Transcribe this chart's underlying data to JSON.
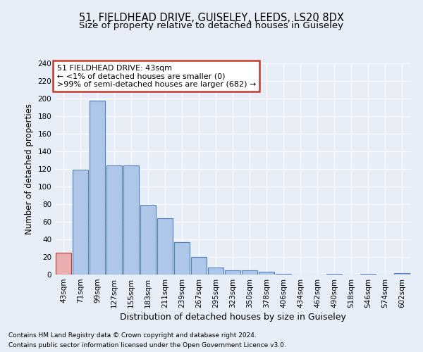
{
  "title1": "51, FIELDHEAD DRIVE, GUISELEY, LEEDS, LS20 8DX",
  "title2": "Size of property relative to detached houses in Guiseley",
  "xlabel": "Distribution of detached houses by size in Guiseley",
  "ylabel": "Number of detached properties",
  "categories": [
    "43sqm",
    "71sqm",
    "99sqm",
    "127sqm",
    "155sqm",
    "183sqm",
    "211sqm",
    "239sqm",
    "267sqm",
    "295sqm",
    "323sqm",
    "350sqm",
    "378sqm",
    "406sqm",
    "434sqm",
    "462sqm",
    "490sqm",
    "518sqm",
    "546sqm",
    "574sqm",
    "602sqm"
  ],
  "values": [
    25,
    119,
    198,
    124,
    124,
    79,
    64,
    37,
    20,
    8,
    5,
    5,
    3,
    1,
    0,
    0,
    1,
    0,
    1,
    0,
    2
  ],
  "highlight_index": 0,
  "bar_color": "#aec6e8",
  "highlight_color": "#e8aeb0",
  "bar_edge_color": "#5080c0",
  "highlight_edge_color": "#c0392b",
  "ylim": [
    0,
    240
  ],
  "yticks": [
    0,
    20,
    40,
    60,
    80,
    100,
    120,
    140,
    160,
    180,
    200,
    220,
    240
  ],
  "annotation_title": "51 FIELDHEAD DRIVE: 43sqm",
  "annotation_line1": "← <1% of detached houses are smaller (0)",
  "annotation_line2": ">99% of semi-detached houses are larger (682) →",
  "annotation_box_color": "#ffffff",
  "annotation_box_edge": "#c0392b",
  "footer1": "Contains HM Land Registry data © Crown copyright and database right 2024.",
  "footer2": "Contains public sector information licensed under the Open Government Licence v3.0.",
  "background_color": "#e8eef8",
  "grid_color": "#ffffff",
  "title1_fontsize": 10.5,
  "title2_fontsize": 9.5,
  "xlabel_fontsize": 9,
  "ylabel_fontsize": 8.5,
  "tick_fontsize": 7.5,
  "footer_fontsize": 6.5,
  "annotation_fontsize": 8
}
